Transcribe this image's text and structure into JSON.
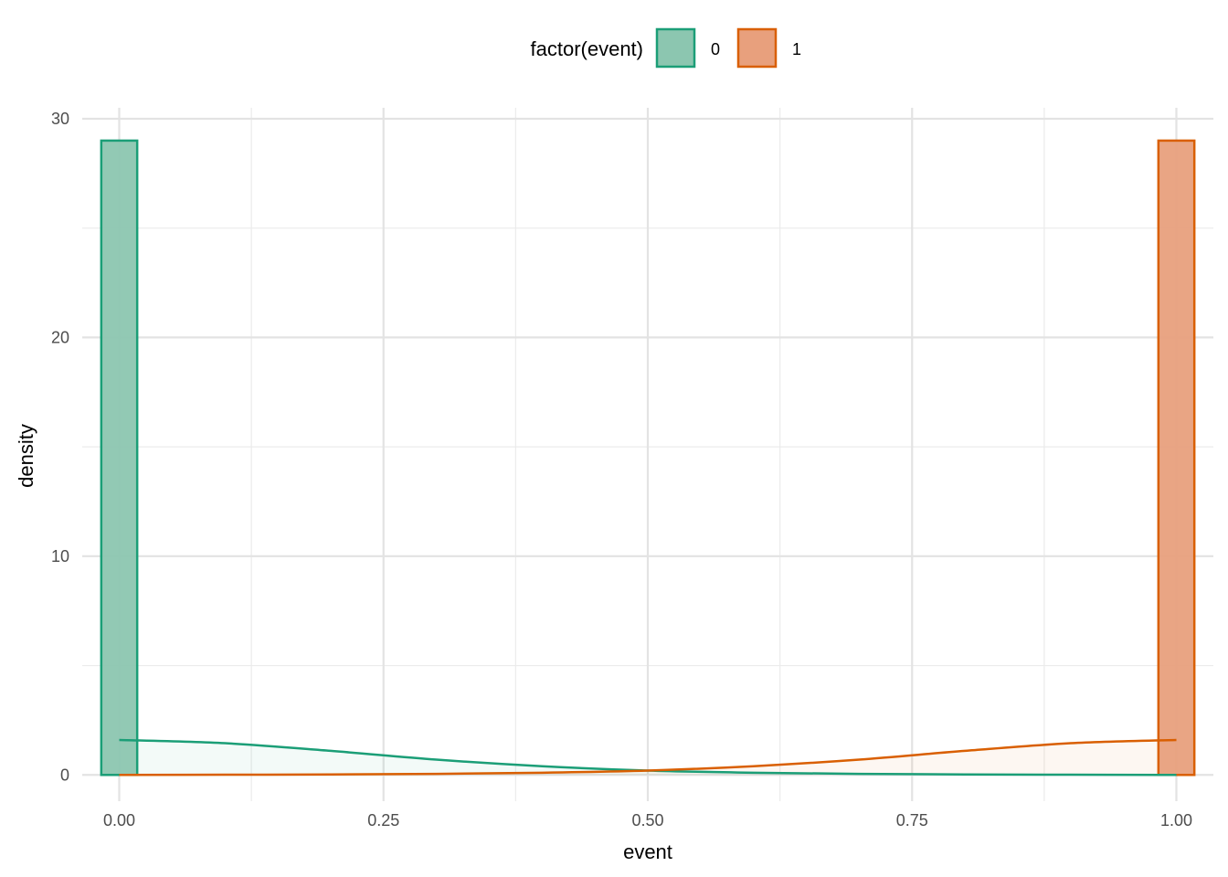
{
  "chart_data": {
    "type": "histogram+density",
    "xlabel": "event",
    "ylabel": "density",
    "xlim": [
      -0.035,
      1.035
    ],
    "ylim": [
      -1.2,
      30.5
    ],
    "x_ticks": [
      0.0,
      0.25,
      0.5,
      0.75,
      1.0
    ],
    "x_tick_labels": [
      "0.00",
      "0.25",
      "0.50",
      "0.75",
      "1.00"
    ],
    "y_ticks": [
      0,
      10,
      20,
      30
    ],
    "y_tick_labels": [
      "0",
      "10",
      "20",
      "30"
    ],
    "y_minor_ticks": [
      5,
      15,
      25
    ],
    "x_minor_ticks": [
      0.125,
      0.375,
      0.625,
      0.875
    ],
    "grid": true,
    "legend": {
      "title": "factor(event)",
      "position": "top",
      "entries": [
        {
          "label": "0",
          "color": "#1b9e77",
          "fill": "#8cc6b0"
        },
        {
          "label": "1",
          "color": "#d95f02",
          "fill": "#e8a07d"
        }
      ]
    },
    "histogram": [
      {
        "series": "0",
        "bin_start": -0.017,
        "bin_end": 0.017,
        "density": 29
      },
      {
        "series": "1",
        "bin_start": 0.983,
        "bin_end": 1.017,
        "density": 29
      }
    ],
    "density_curves": [
      {
        "series": "0",
        "x": [
          0.0,
          0.1,
          0.2,
          0.3,
          0.4,
          0.5,
          0.6,
          0.7,
          0.8,
          0.9,
          1.0
        ],
        "y": [
          1.6,
          1.45,
          1.1,
          0.7,
          0.4,
          0.2,
          0.1,
          0.05,
          0.02,
          0.01,
          0.0
        ]
      },
      {
        "series": "1",
        "x": [
          0.0,
          0.1,
          0.2,
          0.3,
          0.4,
          0.5,
          0.6,
          0.7,
          0.8,
          0.9,
          1.0
        ],
        "y": [
          0.0,
          0.01,
          0.02,
          0.05,
          0.1,
          0.2,
          0.4,
          0.7,
          1.1,
          1.45,
          1.6
        ]
      }
    ]
  }
}
